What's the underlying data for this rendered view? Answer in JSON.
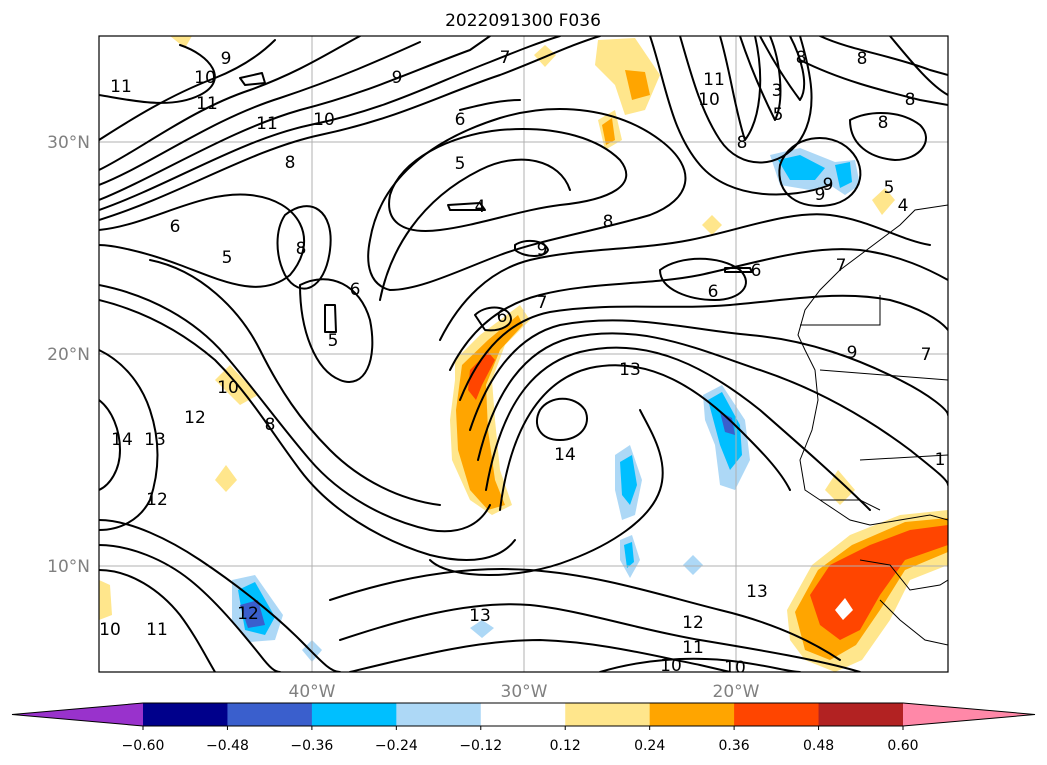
{
  "title": "2022091300 F036",
  "map": {
    "lat_labels": [
      "30°N",
      "20°N",
      "10°N"
    ],
    "lon_labels": [
      "40°W",
      "30°W",
      "20°W"
    ],
    "contour_labels": [
      "9",
      "10",
      "11",
      "11",
      "11",
      "10",
      "7",
      "9",
      "6",
      "5",
      "4",
      "6",
      "5",
      "8",
      "8",
      "6",
      "5",
      "8",
      "9",
      "7",
      "6",
      "6",
      "9",
      "6",
      "8",
      "11",
      "10",
      "8",
      "8",
      "3",
      "5",
      "8",
      "9",
      "5",
      "8",
      "4",
      "7",
      "9",
      "7",
      "10",
      "8",
      "12",
      "13",
      "14",
      "12",
      "14",
      "13",
      "13",
      "12",
      "10",
      "11",
      "13",
      "12",
      "11",
      "10",
      "10",
      "1"
    ]
  },
  "colorbar": {
    "ticks": [
      "−0.60",
      "−0.48",
      "−0.36",
      "−0.24",
      "−0.12",
      "0.12",
      "0.24",
      "0.36",
      "0.48",
      "0.60"
    ],
    "colors": [
      "#9932cc",
      "#00008b",
      "#3a5fcd",
      "#00bfff",
      "#add8f6",
      "#ffffff",
      "#ffe68c",
      "#ffa500",
      "#ff4500",
      "#b22222",
      "#ff88a8"
    ]
  }
}
